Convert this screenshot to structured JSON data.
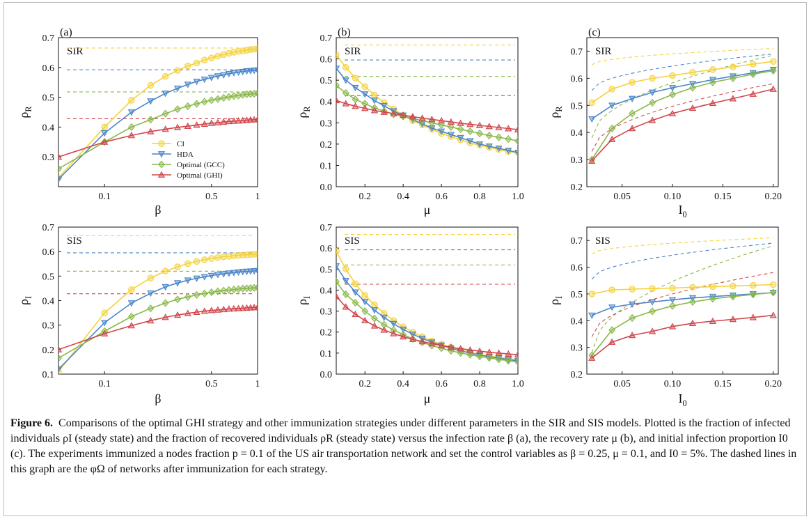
{
  "caption": {
    "label": "Figure 6.",
    "text": "Comparisons of the optimal GHI strategy and other immunization strategies under different parameters in the SIR and SIS models. Plotted is the fraction of infected individuals ρI (steady state) and the fraction of recovered individuals ρR (steady state) versus the infection rate β (a), the recovery rate μ (b), and initial infection proportion I0 (c). The experiments immunized a nodes fraction p = 0.1 of the US air transportation network and set the control variables as β = 0.25, μ = 0.1, and I0 = 5%. The dashed lines in this graph are the φΩ of networks after immunization for each strategy."
  },
  "colors": {
    "CI": "#f5d23c",
    "HDA": "#4a86c8",
    "GCC": "#8ab84a",
    "GHI": "#d1464b"
  },
  "legend": {
    "placement": "inside-center",
    "entries": [
      "CI",
      "HDA",
      "Optimal (GCC)",
      "Optimal (GHI)"
    ]
  },
  "chart_data": [
    {
      "type": "line",
      "panel": "(a)",
      "model": "SIR",
      "xlabel": "β",
      "ylabel": "ρR",
      "xscale": "log",
      "xlim": [
        0.05,
        1
      ],
      "ylim": [
        0.2,
        0.7
      ],
      "xticks": [
        0.1,
        0.5,
        1
      ],
      "xticklabels": [
        "0.1",
        "0.5",
        "1"
      ],
      "yticks": [
        0.3,
        0.4,
        0.5,
        0.6,
        0.7
      ],
      "yticklabels": [
        "0.3",
        "0.4",
        "0.5",
        "0.6",
        "0.7"
      ],
      "x": [
        0.05,
        0.1,
        0.15,
        0.2,
        0.25,
        0.3,
        0.35,
        0.4,
        0.45,
        0.5,
        0.55,
        0.6,
        0.65,
        0.7,
        0.75,
        0.8,
        0.85,
        0.9,
        0.95,
        1.0
      ],
      "series": [
        {
          "key": "CI",
          "marker": "circle",
          "hline": 0.665,
          "values": [
            0.23,
            0.4,
            0.49,
            0.54,
            0.57,
            0.59,
            0.605,
            0.615,
            0.625,
            0.632,
            0.638,
            0.643,
            0.647,
            0.651,
            0.654,
            0.656,
            0.658,
            0.66,
            0.661,
            0.662
          ]
        },
        {
          "key": "HDA",
          "marker": "tri-down",
          "hline": 0.592,
          "values": [
            0.225,
            0.38,
            0.45,
            0.487,
            0.513,
            0.53,
            0.543,
            0.553,
            0.56,
            0.566,
            0.571,
            0.575,
            0.579,
            0.582,
            0.584,
            0.586,
            0.588,
            0.589,
            0.59,
            0.591
          ]
        },
        {
          "key": "GCC",
          "marker": "diamond",
          "hline": 0.518,
          "values": [
            0.26,
            0.35,
            0.4,
            0.425,
            0.445,
            0.46,
            0.47,
            0.478,
            0.485,
            0.49,
            0.494,
            0.498,
            0.501,
            0.504,
            0.506,
            0.508,
            0.51,
            0.511,
            0.512,
            0.513
          ]
        },
        {
          "key": "GHI",
          "marker": "tri-up",
          "hline": 0.428,
          "values": [
            0.3,
            0.35,
            0.372,
            0.385,
            0.393,
            0.399,
            0.403,
            0.407,
            0.41,
            0.413,
            0.415,
            0.417,
            0.419,
            0.42,
            0.421,
            0.422,
            0.423,
            0.424,
            0.425,
            0.425
          ]
        }
      ]
    },
    {
      "type": "line",
      "panel": "(b)",
      "model": "SIR",
      "xlabel": "μ",
      "ylabel": "ρR",
      "xscale": "linear",
      "xlim": [
        0.05,
        1.0
      ],
      "ylim": [
        0.0,
        0.7
      ],
      "xticks": [
        0.2,
        0.4,
        0.6,
        0.8,
        1.0
      ],
      "xticklabels": [
        "0.2",
        "0.4",
        "0.6",
        "0.8",
        "1.0"
      ],
      "yticks": [
        0.0,
        0.1,
        0.2,
        0.3,
        0.4,
        0.5,
        0.6,
        0.7
      ],
      "yticklabels": [
        "0.0",
        "0.1",
        "0.2",
        "0.3",
        "0.4",
        "0.5",
        "0.6",
        "0.7"
      ],
      "x": [
        0.05,
        0.1,
        0.15,
        0.2,
        0.25,
        0.3,
        0.35,
        0.4,
        0.45,
        0.5,
        0.55,
        0.6,
        0.65,
        0.7,
        0.75,
        0.8,
        0.85,
        0.9,
        0.95,
        1.0
      ],
      "series": [
        {
          "key": "CI",
          "marker": "circle",
          "hline": 0.665,
          "values": [
            0.62,
            0.56,
            0.51,
            0.47,
            0.43,
            0.395,
            0.365,
            0.335,
            0.31,
            0.29,
            0.27,
            0.25,
            0.235,
            0.22,
            0.205,
            0.195,
            0.185,
            0.175,
            0.165,
            0.16
          ]
        },
        {
          "key": "HDA",
          "marker": "tri-down",
          "hline": 0.595,
          "values": [
            0.555,
            0.5,
            0.465,
            0.435,
            0.405,
            0.38,
            0.355,
            0.335,
            0.315,
            0.295,
            0.275,
            0.26,
            0.245,
            0.23,
            0.215,
            0.2,
            0.19,
            0.18,
            0.17,
            0.16
          ]
        },
        {
          "key": "GCC",
          "marker": "diamond",
          "hline": 0.518,
          "values": [
            0.475,
            0.44,
            0.41,
            0.39,
            0.37,
            0.355,
            0.34,
            0.33,
            0.32,
            0.31,
            0.3,
            0.29,
            0.28,
            0.27,
            0.26,
            0.25,
            0.24,
            0.232,
            0.224,
            0.215
          ]
        },
        {
          "key": "GHI",
          "marker": "tri-up",
          "hline": 0.428,
          "values": [
            0.405,
            0.39,
            0.378,
            0.368,
            0.358,
            0.35,
            0.343,
            0.336,
            0.329,
            0.322,
            0.316,
            0.31,
            0.304,
            0.298,
            0.293,
            0.288,
            0.283,
            0.278,
            0.273,
            0.268
          ]
        }
      ]
    },
    {
      "type": "line",
      "panel": "(c)",
      "model": "SIR",
      "xlabel": "I0",
      "ylabel": "ρR",
      "xscale": "linear",
      "xlim": [
        0.015,
        0.205
      ],
      "ylim": [
        0.2,
        0.75
      ],
      "xticks": [
        0.05,
        0.1,
        0.15,
        0.2
      ],
      "xticklabels": [
        "0.05",
        "0.10",
        "0.15",
        "0.20"
      ],
      "yticks": [
        0.2,
        0.3,
        0.4,
        0.5,
        0.6,
        0.7
      ],
      "yticklabels": [
        "0.2",
        "0.3",
        "0.4",
        "0.5",
        "0.6",
        "0.7"
      ],
      "x": [
        0.02,
        0.04,
        0.06,
        0.08,
        0.1,
        0.12,
        0.14,
        0.16,
        0.18,
        0.2
      ],
      "series": [
        {
          "key": "CI",
          "marker": "circle",
          "dashed": {
            "x": [
              0.02,
              0.2
            ],
            "y": [
              0.65,
              0.71
            ]
          },
          "values": [
            0.51,
            0.56,
            0.585,
            0.6,
            0.61,
            0.622,
            0.632,
            0.642,
            0.652,
            0.662
          ]
        },
        {
          "key": "HDA",
          "marker": "tri-down",
          "dashed": {
            "x": [
              0.02,
              0.2
            ],
            "y": [
              0.555,
              0.69
            ]
          },
          "values": [
            0.45,
            0.5,
            0.525,
            0.548,
            0.565,
            0.58,
            0.595,
            0.608,
            0.62,
            0.632
          ]
        },
        {
          "key": "GCC",
          "marker": "diamond",
          "dashed": {
            "x": [
              0.02,
              0.2
            ],
            "y": [
              0.38,
              0.685
            ]
          },
          "values": [
            0.3,
            0.415,
            0.47,
            0.51,
            0.54,
            0.565,
            0.585,
            0.6,
            0.615,
            0.628
          ]
        },
        {
          "key": "GHI",
          "marker": "tri-up",
          "dashed": {
            "x": [
              0.02,
              0.2
            ],
            "y": [
              0.33,
              0.58
            ]
          },
          "values": [
            0.295,
            0.375,
            0.415,
            0.445,
            0.47,
            0.49,
            0.508,
            0.525,
            0.542,
            0.56
          ]
        }
      ]
    },
    {
      "type": "line",
      "panel": "",
      "model": "SIS",
      "xlabel": "β",
      "ylabel": "ρI",
      "xscale": "log",
      "xlim": [
        0.05,
        1
      ],
      "ylim": [
        0.1,
        0.7
      ],
      "xticks": [
        0.1,
        0.5,
        1
      ],
      "xticklabels": [
        "0.1",
        "0.5",
        "1"
      ],
      "yticks": [
        0.1,
        0.2,
        0.3,
        0.4,
        0.5,
        0.6,
        0.7
      ],
      "yticklabels": [
        "0.1",
        "0.2",
        "0.3",
        "0.4",
        "0.5",
        "0.6",
        "0.7"
      ],
      "x": [
        0.05,
        0.1,
        0.15,
        0.2,
        0.25,
        0.3,
        0.35,
        0.4,
        0.45,
        0.5,
        0.55,
        0.6,
        0.65,
        0.7,
        0.75,
        0.8,
        0.85,
        0.9,
        0.95,
        1.0
      ],
      "series": [
        {
          "key": "CI",
          "marker": "circle",
          "hline": 0.665,
          "values": [
            0.11,
            0.35,
            0.445,
            0.492,
            0.52,
            0.538,
            0.551,
            0.56,
            0.567,
            0.572,
            0.576,
            0.579,
            0.581,
            0.583,
            0.585,
            0.586,
            0.587,
            0.588,
            0.589,
            0.59
          ]
        },
        {
          "key": "HDA",
          "marker": "tri-down",
          "hline": 0.595,
          "values": [
            0.12,
            0.31,
            0.39,
            0.43,
            0.456,
            0.472,
            0.483,
            0.491,
            0.497,
            0.502,
            0.506,
            0.509,
            0.512,
            0.514,
            0.516,
            0.518,
            0.519,
            0.52,
            0.521,
            0.522
          ]
        },
        {
          "key": "GCC",
          "marker": "diamond",
          "hline": 0.52,
          "values": [
            0.165,
            0.275,
            0.335,
            0.368,
            0.39,
            0.405,
            0.415,
            0.423,
            0.429,
            0.434,
            0.438,
            0.441,
            0.443,
            0.445,
            0.447,
            0.449,
            0.45,
            0.451,
            0.452,
            0.453
          ]
        },
        {
          "key": "GHI",
          "marker": "tri-up",
          "hline": 0.428,
          "values": [
            0.2,
            0.265,
            0.298,
            0.318,
            0.332,
            0.341,
            0.348,
            0.353,
            0.357,
            0.36,
            0.362,
            0.364,
            0.366,
            0.367,
            0.368,
            0.369,
            0.37,
            0.371,
            0.372,
            0.372
          ]
        }
      ]
    },
    {
      "type": "line",
      "panel": "",
      "model": "SIS",
      "xlabel": "μ",
      "ylabel": "ρI",
      "xscale": "linear",
      "xlim": [
        0.05,
        1.0
      ],
      "ylim": [
        0.0,
        0.7
      ],
      "xticks": [
        0.2,
        0.4,
        0.6,
        0.8,
        1.0
      ],
      "xticklabels": [
        "0.2",
        "0.4",
        "0.6",
        "0.8",
        "1.0"
      ],
      "yticks": [
        0.0,
        0.1,
        0.2,
        0.3,
        0.4,
        0.5,
        0.6,
        0.7
      ],
      "yticklabels": [
        "0.0",
        "0.1",
        "0.2",
        "0.3",
        "0.4",
        "0.5",
        "0.6",
        "0.7"
      ],
      "x": [
        0.05,
        0.1,
        0.15,
        0.2,
        0.25,
        0.3,
        0.35,
        0.4,
        0.45,
        0.5,
        0.55,
        0.6,
        0.65,
        0.7,
        0.75,
        0.8,
        0.85,
        0.9,
        0.95,
        1.0
      ],
      "series": [
        {
          "key": "CI",
          "marker": "circle",
          "hline": 0.665,
          "values": [
            0.585,
            0.5,
            0.43,
            0.375,
            0.33,
            0.29,
            0.255,
            0.225,
            0.2,
            0.178,
            0.158,
            0.142,
            0.128,
            0.115,
            0.104,
            0.095,
            0.087,
            0.08,
            0.074,
            0.068
          ]
        },
        {
          "key": "HDA",
          "marker": "tri-down",
          "hline": 0.592,
          "values": [
            0.515,
            0.445,
            0.39,
            0.345,
            0.305,
            0.27,
            0.24,
            0.213,
            0.19,
            0.17,
            0.152,
            0.137,
            0.123,
            0.111,
            0.1,
            0.091,
            0.083,
            0.076,
            0.069,
            0.063
          ]
        },
        {
          "key": "GCC",
          "marker": "diamond",
          "hline": 0.52,
          "values": [
            0.44,
            0.38,
            0.34,
            0.3,
            0.265,
            0.235,
            0.21,
            0.188,
            0.168,
            0.151,
            0.136,
            0.123,
            0.111,
            0.101,
            0.092,
            0.084,
            0.077,
            0.07,
            0.064,
            0.058
          ]
        },
        {
          "key": "GHI",
          "marker": "tri-up",
          "hline": 0.428,
          "values": [
            0.37,
            0.32,
            0.285,
            0.255,
            0.23,
            0.21,
            0.193,
            0.178,
            0.166,
            0.155,
            0.145,
            0.136,
            0.128,
            0.121,
            0.115,
            0.109,
            0.104,
            0.1,
            0.096,
            0.092
          ]
        }
      ]
    },
    {
      "type": "line",
      "panel": "",
      "model": "SIS",
      "xlabel": "I0",
      "ylabel": "ρI",
      "xscale": "linear",
      "xlim": [
        0.015,
        0.205
      ],
      "ylim": [
        0.2,
        0.75
      ],
      "xticks": [
        0.05,
        0.1,
        0.15,
        0.2
      ],
      "xticklabels": [
        "0.05",
        "0.10",
        "0.15",
        "0.20"
      ],
      "yticks": [
        0.2,
        0.3,
        0.4,
        0.5,
        0.6,
        0.7
      ],
      "yticklabels": [
        "0.2",
        "0.3",
        "0.4",
        "0.5",
        "0.6",
        "0.7"
      ],
      "x": [
        0.02,
        0.04,
        0.06,
        0.08,
        0.1,
        0.12,
        0.14,
        0.16,
        0.18,
        0.2
      ],
      "series": [
        {
          "key": "CI",
          "marker": "circle",
          "dashed": {
            "x": [
              0.02,
              0.2
            ],
            "y": [
              0.65,
              0.71
            ]
          },
          "values": [
            0.5,
            0.515,
            0.518,
            0.52,
            0.522,
            0.525,
            0.527,
            0.53,
            0.532,
            0.535
          ]
        },
        {
          "key": "HDA",
          "marker": "tri-down",
          "dashed": {
            "x": [
              0.02,
              0.2
            ],
            "y": [
              0.555,
              0.69
            ]
          },
          "values": [
            0.42,
            0.45,
            0.462,
            0.47,
            0.478,
            0.485,
            0.49,
            0.495,
            0.5,
            0.505
          ]
        },
        {
          "key": "GCC",
          "marker": "diamond",
          "dashed": {
            "x": [
              0.02,
              0.2
            ],
            "y": [
              0.28,
              0.68
            ]
          },
          "values": [
            0.27,
            0.365,
            0.41,
            0.435,
            0.455,
            0.47,
            0.482,
            0.49,
            0.498,
            0.505
          ]
        },
        {
          "key": "GHI",
          "marker": "tri-up",
          "dashed": {
            "x": [
              0.02,
              0.2
            ],
            "y": [
              0.34,
              0.58
            ]
          },
          "values": [
            0.26,
            0.32,
            0.345,
            0.36,
            0.378,
            0.39,
            0.398,
            0.405,
            0.412,
            0.42
          ]
        }
      ]
    }
  ]
}
